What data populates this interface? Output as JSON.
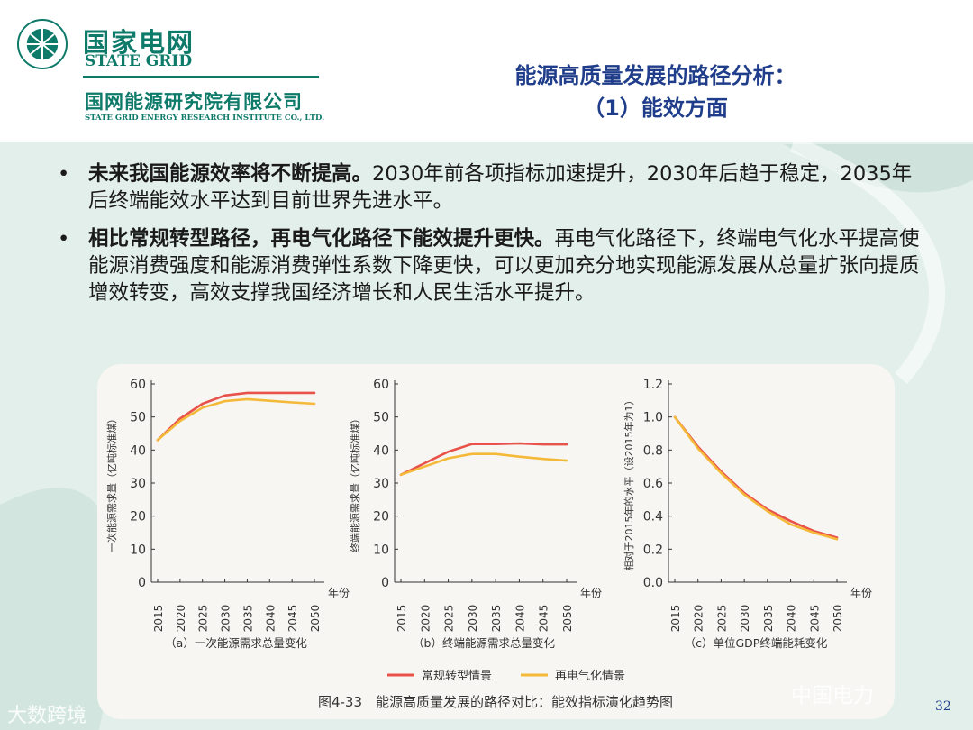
{
  "header": {
    "logo_cn": "国家电网",
    "logo_en": "STATE GRID",
    "institute_cn": "国网能源研究院有限公司",
    "institute_en": "STATE GRID ENERGY RESEARCH INSTITUTE CO., LTD.",
    "title_line1": "能源高质量发展的路径分析：",
    "title_line2": "（1）能效方面",
    "colors": {
      "brand_green": "#0d7a6a",
      "title_blue": "#1f3d8a"
    }
  },
  "bullets": [
    {
      "lead": "未来我国能源效率将不断提高。",
      "text": "2030年前各项指标加速提升，2030年后趋于稳定，2035年后终端能效水平达到目前世界先进水平。"
    },
    {
      "lead": "相比常规转型路径，再电气化路径下能效提升更快。",
      "text": "再电气化路径下，终端电气化水平提高使能源消费强度和能源消费弹性系数下降更快，可以更加充分地实现能源发展从总量扩张向提质增效转变，高效支撑我国经济增长和人民生活水平提升。"
    }
  ],
  "figure": {
    "caption": "图4-33　能源高质量发展的路径对比：能效指标演化趋势图",
    "legend": [
      {
        "name": "常规转型情景",
        "color": "#e8524a"
      },
      {
        "name": "再电气化情景",
        "color": "#f5b93a"
      }
    ]
  },
  "chart_data": [
    {
      "type": "line",
      "title": "（a）一次能源需求总量变化",
      "xlabel": "年份",
      "ylabel": "一次能源需求量（亿吨标准煤）",
      "x": [
        2015,
        2020,
        2025,
        2030,
        2035,
        2040,
        2045,
        2050
      ],
      "ylim": [
        0,
        60
      ],
      "yticks": [
        "0",
        "10",
        "20",
        "30",
        "40",
        "50",
        "60"
      ],
      "series": [
        {
          "name": "常规转型情景",
          "values": [
            43.0,
            49.5,
            54.0,
            56.5,
            57.3,
            57.3,
            57.3,
            57.3
          ]
        },
        {
          "name": "再电气化情景",
          "values": [
            43.0,
            48.8,
            52.8,
            54.8,
            55.4,
            54.9,
            54.4,
            54.0
          ]
        }
      ]
    },
    {
      "type": "line",
      "title": "（b）终端能源需求总量变化",
      "xlabel": "年份",
      "ylabel": "终端能源需求量（亿吨标准煤）",
      "x": [
        2015,
        2020,
        2025,
        2030,
        2035,
        2040,
        2045,
        2050
      ],
      "ylim": [
        0,
        60
      ],
      "yticks": [
        "0",
        "10",
        "20",
        "30",
        "40",
        "50",
        "60"
      ],
      "series": [
        {
          "name": "常规转型情景",
          "values": [
            32.5,
            36.0,
            39.5,
            41.8,
            41.8,
            42.0,
            41.7,
            41.7
          ]
        },
        {
          "name": "再电气化情景",
          "values": [
            32.5,
            35.0,
            37.5,
            38.8,
            38.8,
            38.0,
            37.3,
            36.8
          ]
        }
      ]
    },
    {
      "type": "line",
      "title": "（c）单位GDP终端能耗变化",
      "xlabel": "年份",
      "ylabel": "相对于2015年的水平（设2015年为1）",
      "x": [
        2015,
        2020,
        2025,
        2030,
        2035,
        2040,
        2045,
        2050
      ],
      "ylim": [
        0,
        1.2
      ],
      "yticks": [
        "0.0",
        "0.2",
        "0.4",
        "0.6",
        "0.8",
        "1.0",
        "1.2"
      ],
      "series": [
        {
          "name": "常规转型情景",
          "values": [
            1.0,
            0.82,
            0.67,
            0.54,
            0.44,
            0.37,
            0.31,
            0.27
          ]
        },
        {
          "name": "再电气化情景",
          "values": [
            1.0,
            0.81,
            0.66,
            0.53,
            0.43,
            0.35,
            0.3,
            0.26
          ]
        }
      ]
    }
  ],
  "watermarks": {
    "left": "大数跨境",
    "right": "中国电力"
  },
  "page_number": "32"
}
